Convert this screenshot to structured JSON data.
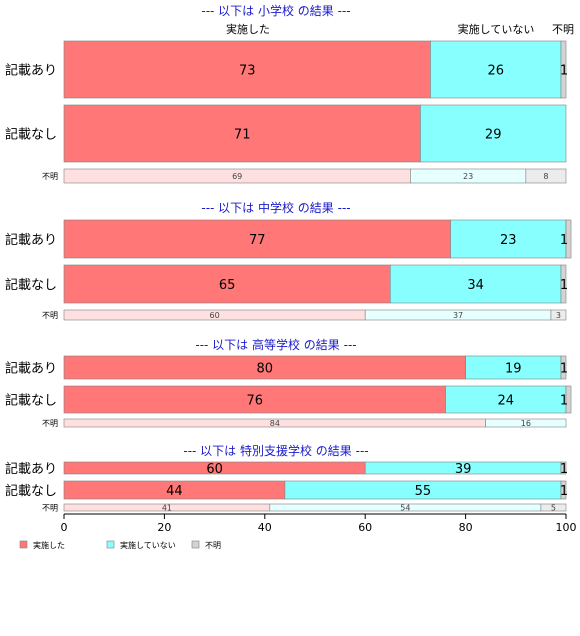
{
  "colors": {
    "done": "#ff7777",
    "not_done": "#88ffff",
    "unknown": "#d3d3d3",
    "done_light": "#ffe0e0",
    "not_done_light": "#e6ffff",
    "unknown_light": "#ececec",
    "title": "#1a1acc"
  },
  "column_headers": [
    "実施した",
    "実施していない",
    "不明"
  ],
  "legend": [
    "実施した",
    "実施していない",
    "不明"
  ],
  "chart_data": {
    "type": "bar",
    "orientation": "horizontal-stacked-percent",
    "xlim": [
      0,
      100
    ],
    "xticks": [
      0,
      20,
      40,
      60,
      80,
      100
    ],
    "series_names": [
      "実施した",
      "実施していない",
      "不明"
    ],
    "sections": [
      {
        "title": "--- 以下は 小学校 の結果 ---",
        "rows": [
          {
            "label": "記載あり",
            "values": [
              73,
              26,
              1
            ],
            "labels": [
              "73",
              "26",
              "1"
            ]
          },
          {
            "label": "記載なし",
            "values": [
              71,
              29,
              0
            ],
            "labels": [
              "71",
              "29",
              ""
            ]
          },
          {
            "label": "不明",
            "small": true,
            "values": [
              69,
              23,
              8
            ],
            "labels": [
              "69",
              "23",
              "8"
            ]
          }
        ]
      },
      {
        "title": "--- 以下は 中学校 の結果 ---",
        "rows": [
          {
            "label": "記載あり",
            "values": [
              77,
              23,
              1
            ],
            "labels": [
              "77",
              "23",
              "1"
            ]
          },
          {
            "label": "記載なし",
            "values": [
              65,
              34,
              1
            ],
            "labels": [
              "65",
              "34",
              "1"
            ]
          },
          {
            "label": "不明",
            "small": true,
            "values": [
              60,
              37,
              3
            ],
            "labels": [
              "60",
              "37",
              "3"
            ]
          }
        ]
      },
      {
        "title": "--- 以下は 高等学校 の結果 ---",
        "rows": [
          {
            "label": "記載あり",
            "values": [
              80,
              19,
              1
            ],
            "labels": [
              "80",
              "19",
              "1"
            ]
          },
          {
            "label": "記載なし",
            "values": [
              76,
              24,
              1
            ],
            "labels": [
              "76",
              "24",
              "1"
            ]
          },
          {
            "label": "不明",
            "small": true,
            "values": [
              84,
              16,
              0
            ],
            "labels": [
              "84",
              "16",
              ""
            ]
          }
        ]
      },
      {
        "title": "--- 以下は 特別支援学校 の結果 ---",
        "rows": [
          {
            "label": "記載あり",
            "values": [
              60,
              39,
              1
            ],
            "labels": [
              "60",
              "39",
              "1"
            ]
          },
          {
            "label": "記載なし",
            "values": [
              44,
              55,
              1
            ],
            "labels": [
              "44",
              "55",
              "1"
            ]
          },
          {
            "label": "不明",
            "small": true,
            "values": [
              41,
              54,
              5
            ],
            "labels": [
              "41",
              "54",
              "5"
            ]
          }
        ]
      }
    ]
  }
}
